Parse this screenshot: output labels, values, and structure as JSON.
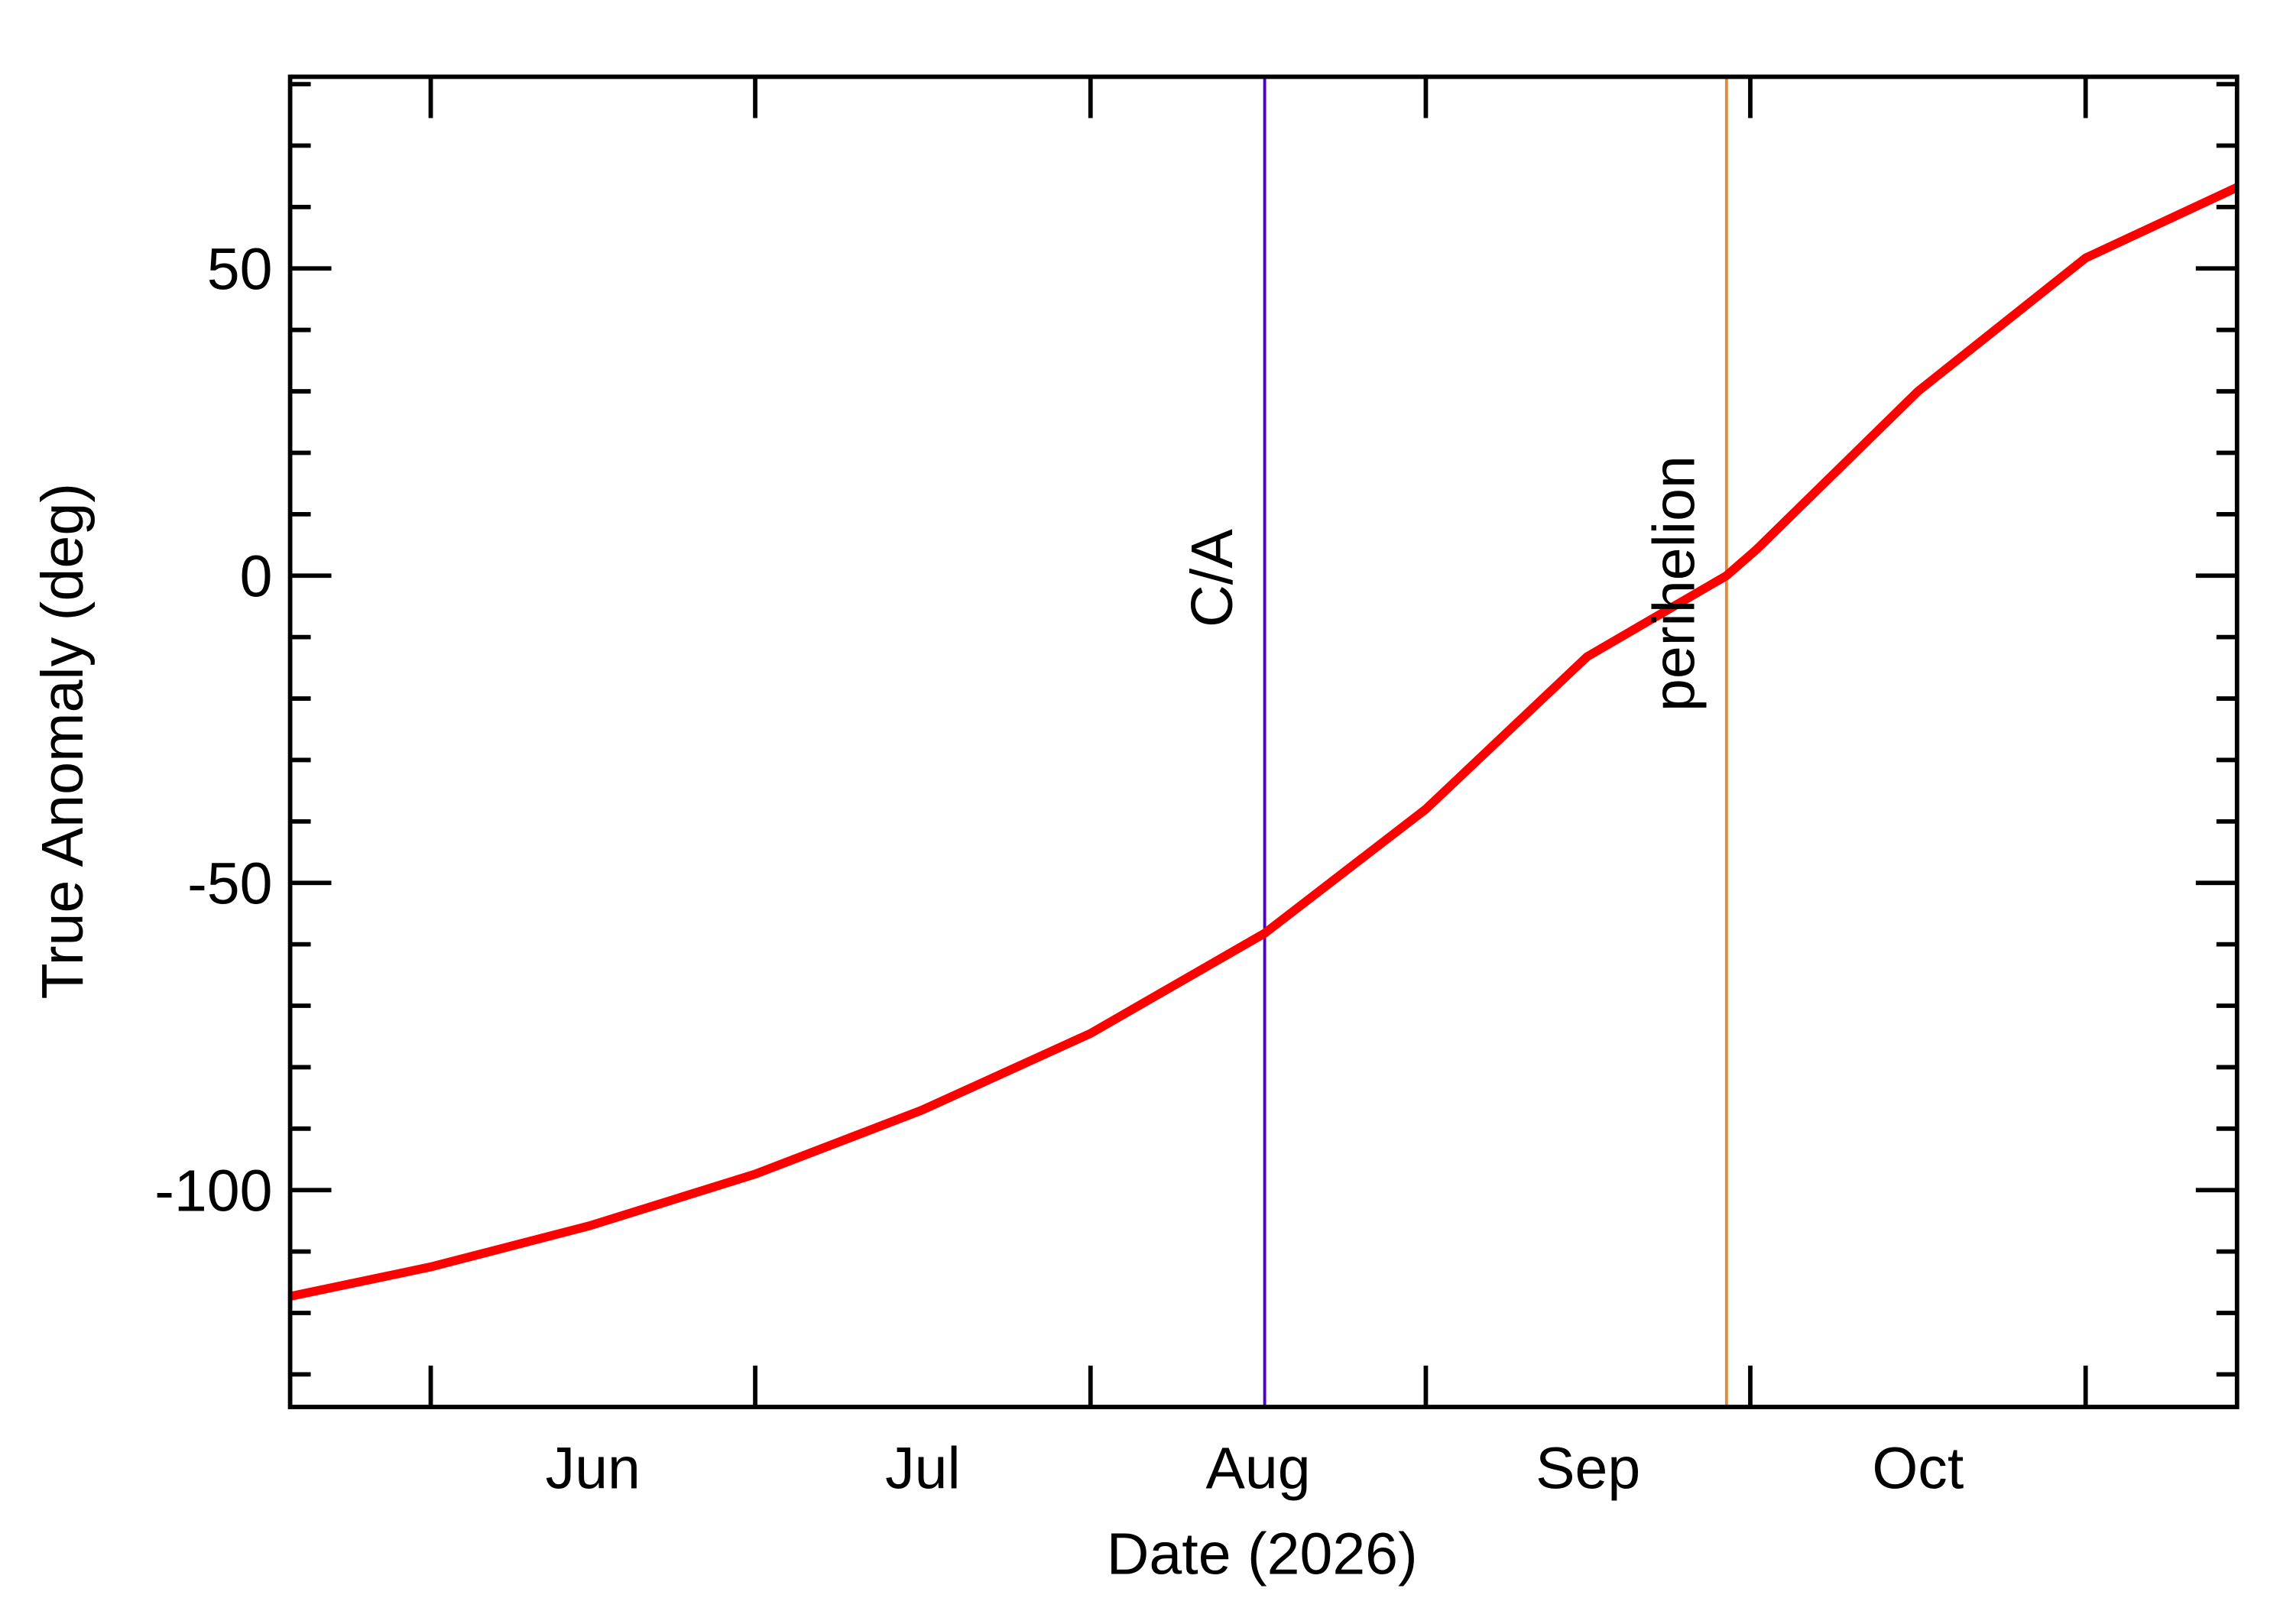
{
  "chart_data": {
    "type": "line",
    "x_label": "Date (2026)",
    "y_label": "True Anomaly (deg)",
    "x": [
      139,
      152,
      166.7,
      182,
      197.4,
      213,
      229.1,
      244,
      258.9,
      271.8,
      274.6,
      289.5,
      305,
      319
    ],
    "series": [
      {
        "color": "#ff0000",
        "values": [
          -117.3,
          -112.5,
          -105.8,
          -97.4,
          -87,
          -74.5,
          -58.2,
          -38,
          -13.2,
          0,
          4.3,
          30,
          51.7,
          63.2
        ]
      }
    ],
    "xlim": [
      139,
      319
    ],
    "xticks": [
      {
        "value": 167,
        "label": "Jun"
      },
      {
        "value": 197.5,
        "label": "Jul"
      },
      {
        "value": 228.5,
        "label": "Aug"
      },
      {
        "value": 259,
        "label": "Sep"
      },
      {
        "value": 289.5,
        "label": "Oct"
      }
    ],
    "xminor_ticks": [
      152,
      182,
      213,
      244,
      274,
      305
    ],
    "ylim": [
      -135.3,
      81.2
    ],
    "yticks": [
      -100,
      -50,
      0,
      50
    ],
    "yminor_ticks": [
      -130,
      -120,
      -110,
      -90,
      -80,
      -70,
      -60,
      -40,
      -30,
      -20,
      -10,
      10,
      20,
      30,
      40,
      60,
      70,
      80
    ],
    "annotations": [
      {
        "label": "C/A",
        "x": 229.1,
        "color": "#4b00d0"
      },
      {
        "label": "perihelion",
        "x": 271.8,
        "color": "#f06e10",
        "line_color": "#e08a40"
      }
    ]
  }
}
